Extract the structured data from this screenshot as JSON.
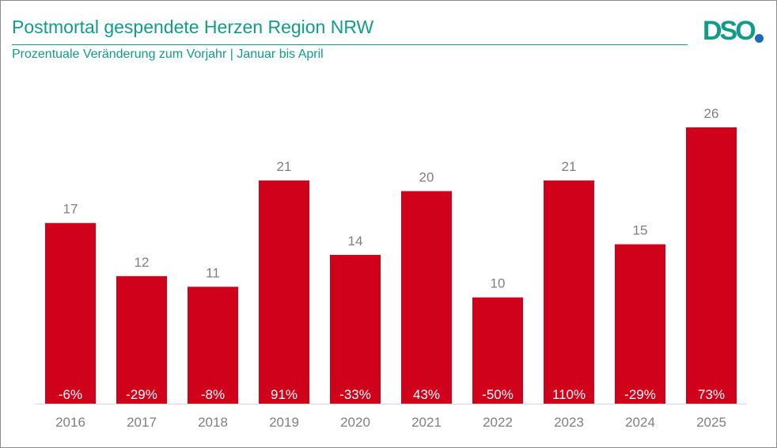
{
  "chart_data": {
    "type": "bar",
    "title": "Postmortal gespendete Herzen Region NRW",
    "subtitle": "Prozentuale Veränderung zum Vorjahr | Januar bis April",
    "categories": [
      "2016",
      "2017",
      "2018",
      "2019",
      "2020",
      "2021",
      "2022",
      "2023",
      "2024",
      "2025"
    ],
    "values": [
      17,
      12,
      11,
      21,
      14,
      20,
      10,
      21,
      15,
      26
    ],
    "change_labels": [
      "-6%",
      "-29%",
      "-8%",
      "91%",
      "-33%",
      "43%",
      "-50%",
      "110%",
      "-29%",
      "73%"
    ],
    "ylim": [
      0,
      28.3
    ],
    "grid": false,
    "bar_color": "#d0021b",
    "value_label_color": "#7f7f7f",
    "change_label_color": "#ffffff"
  },
  "logo": {
    "text": "DSO"
  },
  "colors": {
    "accent": "#129b87",
    "logo_dot": "#1e6ab4"
  }
}
